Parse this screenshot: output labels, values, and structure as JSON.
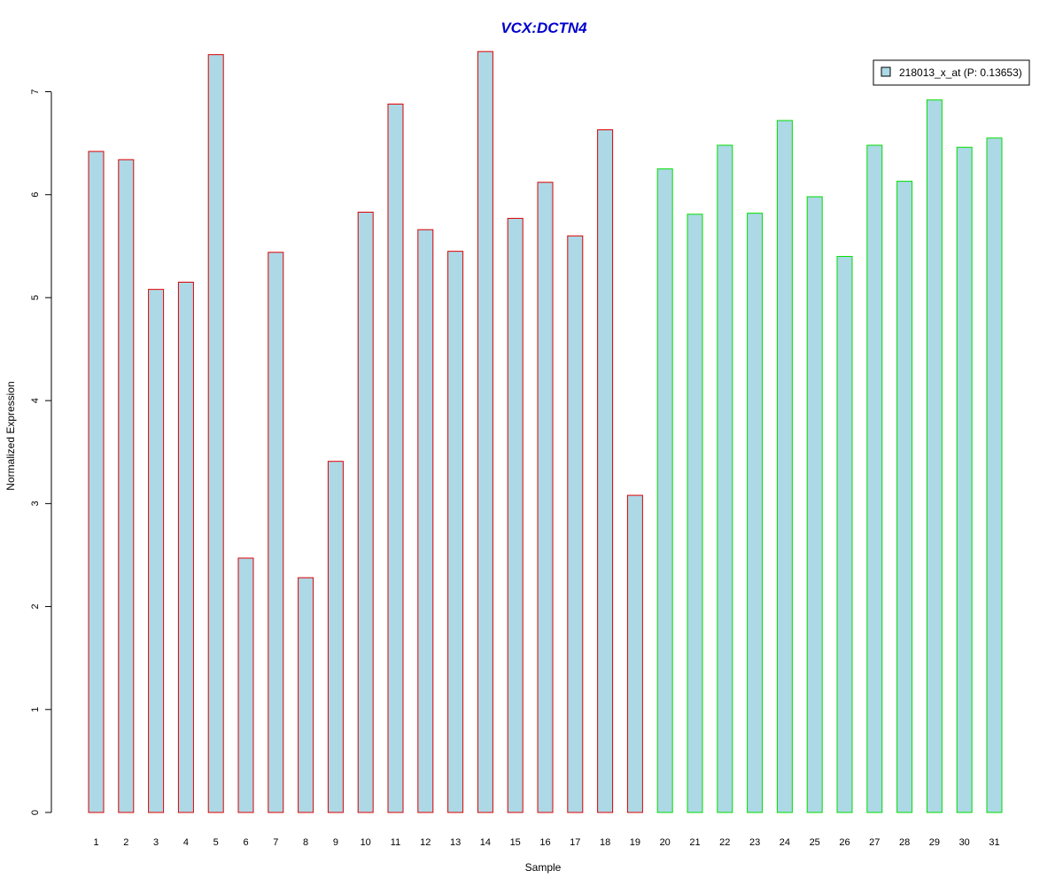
{
  "chart_data": {
    "type": "bar",
    "title": "VCX:DCTN4",
    "xlabel": "Sample",
    "ylabel": "Normalized Expression",
    "categories": [
      "1",
      "2",
      "3",
      "4",
      "5",
      "6",
      "7",
      "8",
      "9",
      "10",
      "11",
      "12",
      "13",
      "14",
      "15",
      "16",
      "17",
      "18",
      "19",
      "20",
      "21",
      "22",
      "23",
      "24",
      "25",
      "26",
      "27",
      "28",
      "29",
      "30",
      "31"
    ],
    "series": [
      {
        "name": "218013_x_at (P: 0.13653)",
        "values": [
          6.42,
          6.34,
          5.08,
          5.15,
          7.36,
          2.47,
          5.44,
          2.28,
          3.41,
          5.83,
          6.88,
          5.66,
          5.45,
          7.39,
          5.77,
          6.12,
          5.6,
          6.63,
          3.08,
          6.25,
          5.81,
          6.48,
          5.82,
          6.72,
          5.98,
          5.4,
          6.48,
          6.13,
          6.92,
          6.46,
          6.55
        ]
      }
    ],
    "group_sizes": [
      19,
      12
    ],
    "group_border_colors": [
      "#dd0000",
      "#00dd00"
    ],
    "bar_fill": "#add8e6",
    "title_color": "#0000cc",
    "yticks": [
      0,
      1,
      2,
      3,
      4,
      5,
      6,
      7
    ],
    "ylim": [
      0,
      7.4
    ],
    "legend_position": "top-right",
    "grid": false
  }
}
